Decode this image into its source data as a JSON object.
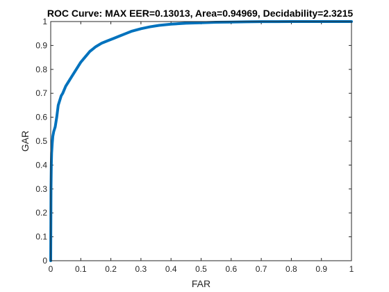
{
  "chart_data": {
    "type": "line",
    "title": "ROC Curve: MAX   EER=0.13013,    Area=0.94969,    Decidability=2.3215",
    "xlabel": "FAR",
    "ylabel": "GAR",
    "xlim": [
      0,
      1
    ],
    "ylim": [
      0,
      1
    ],
    "x_ticks": [
      0,
      0.1,
      0.2,
      0.3,
      0.4,
      0.5,
      0.6,
      0.7,
      0.8,
      0.9,
      1
    ],
    "y_ticks": [
      0,
      0.1,
      0.2,
      0.3,
      0.4,
      0.5,
      0.6,
      0.7,
      0.8,
      0.9,
      1
    ],
    "x_tick_labels": [
      "0",
      "0.1",
      "0.2",
      "0.3",
      "0.4",
      "0.5",
      "0.6",
      "0.7",
      "0.8",
      "0.9",
      "1"
    ],
    "y_tick_labels": [
      "0",
      "0.1",
      "0.2",
      "0.3",
      "0.4",
      "0.5",
      "0.6",
      "0.7",
      "0.8",
      "0.9",
      "1"
    ],
    "grid": false,
    "box": true,
    "series": [
      {
        "color": "#0072BD",
        "x": [
          0,
          0.0005,
          0.001,
          0.002,
          0.003,
          0.005,
          0.007,
          0.01,
          0.015,
          0.02,
          0.025,
          0.03,
          0.035,
          0.04,
          0.05,
          0.06,
          0.07,
          0.08,
          0.09,
          0.1,
          0.11,
          0.12,
          0.13,
          0.14,
          0.15,
          0.17,
          0.19,
          0.21,
          0.23,
          0.25,
          0.27,
          0.3,
          0.33,
          0.36,
          0.4,
          0.45,
          0.5,
          0.55,
          0.6,
          0.65,
          0.7,
          0.75,
          0.8,
          0.9,
          1.0
        ],
        "y": [
          0,
          0.15,
          0.3,
          0.4,
          0.45,
          0.49,
          0.52,
          0.54,
          0.56,
          0.6,
          0.65,
          0.67,
          0.69,
          0.7,
          0.73,
          0.75,
          0.77,
          0.79,
          0.81,
          0.83,
          0.845,
          0.86,
          0.875,
          0.885,
          0.895,
          0.91,
          0.92,
          0.93,
          0.94,
          0.95,
          0.96,
          0.97,
          0.978,
          0.984,
          0.989,
          0.993,
          0.995,
          0.997,
          0.998,
          0.999,
          0.9995,
          0.9998,
          1.0,
          1.0,
          1.0
        ]
      }
    ]
  }
}
